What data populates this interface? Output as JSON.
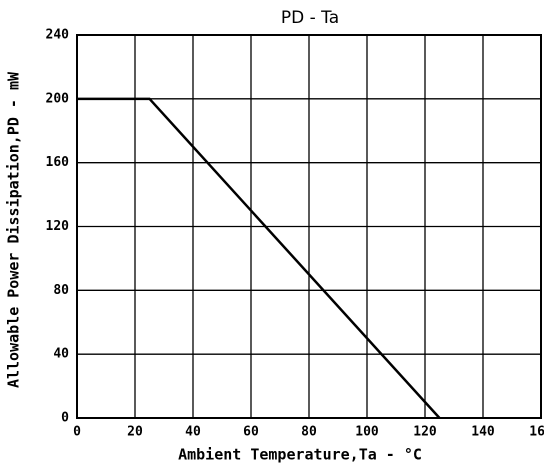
{
  "chart_data": {
    "type": "line",
    "title": "PD - Ta",
    "xlabel": "Ambient Temperature,Ta - °C",
    "ylabel": "Allowable Power Dissipation,PD - mW",
    "x": [
      0,
      25,
      125
    ],
    "series": [
      {
        "name": "PD",
        "color": "#000000",
        "values": [
          200,
          200,
          0
        ]
      }
    ],
    "xlim": [
      0,
      160
    ],
    "xticks": [
      0,
      20,
      40,
      60,
      80,
      100,
      120,
      140,
      160
    ],
    "ylim": [
      0,
      240
    ],
    "yticks": [
      0,
      40,
      80,
      120,
      160,
      200,
      240
    ],
    "grid": true
  }
}
